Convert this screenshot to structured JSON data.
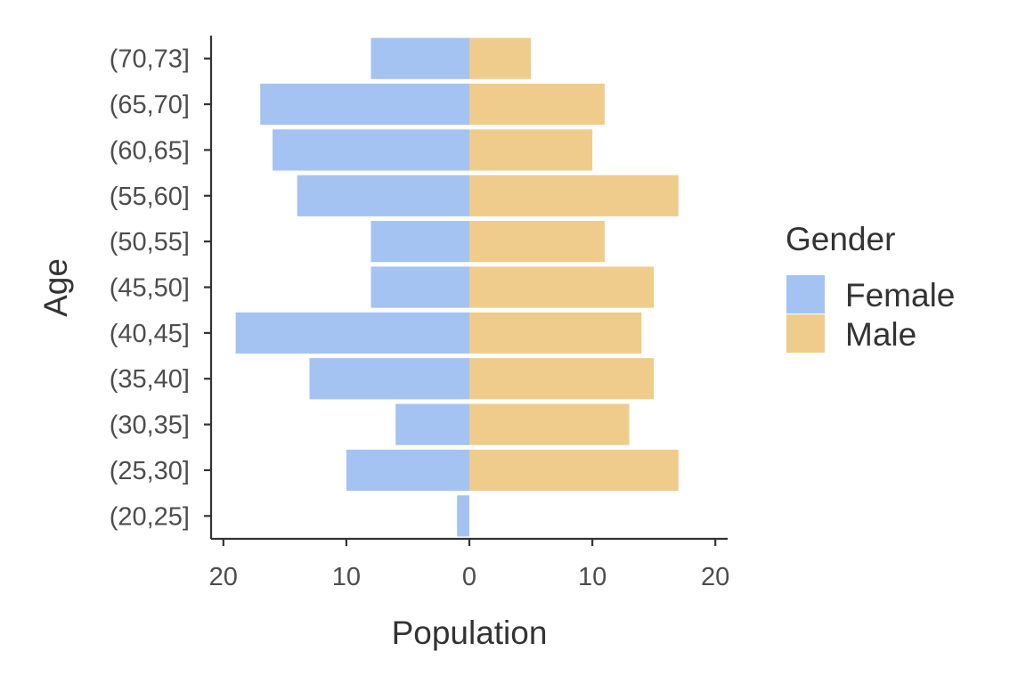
{
  "chart_data": {
    "type": "bar",
    "orientation": "horizontal",
    "style": "population-pyramid",
    "categories": [
      "(20,25]",
      "(25,30]",
      "(30,35]",
      "(35,40]",
      "(40,45]",
      "(45,50]",
      "(50,55]",
      "(55,60]",
      "(60,65]",
      "(65,70]",
      "(70,73]"
    ],
    "series": [
      {
        "name": "Female",
        "color": "#a4c3f2",
        "values": [
          1,
          10,
          6,
          13,
          19,
          8,
          8,
          14,
          16,
          17,
          8
        ]
      },
      {
        "name": "Male",
        "color": "#f0cc8c",
        "values": [
          0,
          17,
          13,
          15,
          14,
          15,
          11,
          17,
          10,
          11,
          5
        ]
      }
    ],
    "xlabel": "Population",
    "ylabel": "Age",
    "xlim": [
      -21,
      21
    ],
    "xticks": [
      -20,
      -10,
      0,
      10,
      20
    ],
    "xtick_labels": [
      "20",
      "10",
      "0",
      "10",
      "20"
    ],
    "legend": {
      "title": "Gender",
      "position": "right"
    },
    "grid": false
  }
}
